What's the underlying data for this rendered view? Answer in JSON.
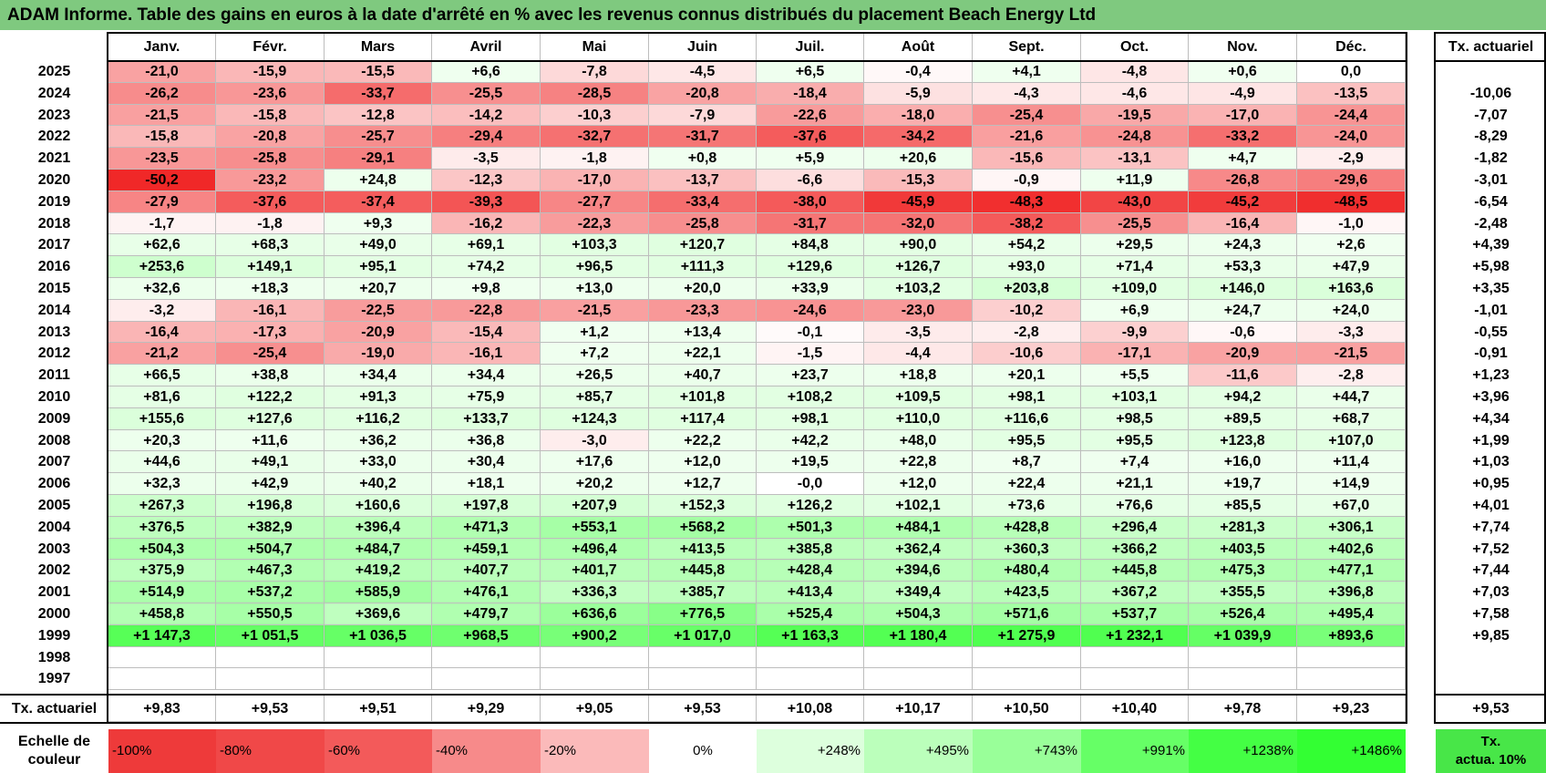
{
  "title": "ADAM Informe. Table des gains en euros à la date d'arrêté en % avec les revenus connus distribués du placement Beach Energy Ltd",
  "months": [
    "Janv.",
    "Févr.",
    "Mars",
    "Avril",
    "Mai",
    "Juin",
    "Juil.",
    "Août",
    "Sept.",
    "Oct.",
    "Nov.",
    "Déc."
  ],
  "tx_header": "Tx. actuariel",
  "rows": [
    {
      "year": "2025",
      "values": [
        "-21,0",
        "-15,9",
        "-15,5",
        "+6,6",
        "-7,8",
        "-4,5",
        "+6,5",
        "-0,4",
        "+4,1",
        "-4,8",
        "+0,6",
        "0,0"
      ],
      "tx": ""
    },
    {
      "year": "2024",
      "values": [
        "-26,2",
        "-23,6",
        "-33,7",
        "-25,5",
        "-28,5",
        "-20,8",
        "-18,4",
        "-5,9",
        "-4,3",
        "-4,6",
        "-4,9",
        "-13,5"
      ],
      "tx": "-10,06"
    },
    {
      "year": "2023",
      "values": [
        "-21,5",
        "-15,8",
        "-12,8",
        "-14,2",
        "-10,3",
        "-7,9",
        "-22,6",
        "-18,0",
        "-25,4",
        "-19,5",
        "-17,0",
        "-24,4"
      ],
      "tx": "-7,07"
    },
    {
      "year": "2022",
      "values": [
        "-15,8",
        "-20,8",
        "-25,7",
        "-29,4",
        "-32,7",
        "-31,7",
        "-37,6",
        "-34,2",
        "-21,6",
        "-24,8",
        "-33,2",
        "-24,0"
      ],
      "tx": "-8,29"
    },
    {
      "year": "2021",
      "values": [
        "-23,5",
        "-25,8",
        "-29,1",
        "-3,5",
        "-1,8",
        "+0,8",
        "+5,9",
        "+20,6",
        "-15,6",
        "-13,1",
        "+4,7",
        "-2,9"
      ],
      "tx": "-1,82"
    },
    {
      "year": "2020",
      "values": [
        "-50,2",
        "-23,2",
        "+24,8",
        "-12,3",
        "-17,0",
        "-13,7",
        "-6,6",
        "-15,3",
        "-0,9",
        "+11,9",
        "-26,8",
        "-29,6"
      ],
      "tx": "-3,01"
    },
    {
      "year": "2019",
      "values": [
        "-27,9",
        "-37,6",
        "-37,4",
        "-39,3",
        "-27,7",
        "-33,4",
        "-38,0",
        "-45,9",
        "-48,3",
        "-43,0",
        "-45,2",
        "-48,5"
      ],
      "tx": "-6,54"
    },
    {
      "year": "2018",
      "values": [
        "-1,7",
        "-1,8",
        "+9,3",
        "-16,2",
        "-22,3",
        "-25,8",
        "-31,7",
        "-32,0",
        "-38,2",
        "-25,5",
        "-16,4",
        "-1,0"
      ],
      "tx": "-2,48"
    },
    {
      "year": "2017",
      "values": [
        "+62,6",
        "+68,3",
        "+49,0",
        "+69,1",
        "+103,3",
        "+120,7",
        "+84,8",
        "+90,0",
        "+54,2",
        "+29,5",
        "+24,3",
        "+2,6"
      ],
      "tx": "+4,39"
    },
    {
      "year": "2016",
      "values": [
        "+253,6",
        "+149,1",
        "+95,1",
        "+74,2",
        "+96,5",
        "+111,3",
        "+129,6",
        "+126,7",
        "+93,0",
        "+71,4",
        "+53,3",
        "+47,9"
      ],
      "tx": "+5,98"
    },
    {
      "year": "2015",
      "values": [
        "+32,6",
        "+18,3",
        "+20,7",
        "+9,8",
        "+13,0",
        "+20,0",
        "+33,9",
        "+103,2",
        "+203,8",
        "+109,0",
        "+146,0",
        "+163,6"
      ],
      "tx": "+3,35"
    },
    {
      "year": "2014",
      "values": [
        "-3,2",
        "-16,1",
        "-22,5",
        "-22,8",
        "-21,5",
        "-23,3",
        "-24,6",
        "-23,0",
        "-10,2",
        "+6,9",
        "+24,7",
        "+24,0"
      ],
      "tx": "-1,01"
    },
    {
      "year": "2013",
      "values": [
        "-16,4",
        "-17,3",
        "-20,9",
        "-15,4",
        "+1,2",
        "+13,4",
        "-0,1",
        "-3,5",
        "-2,8",
        "-9,9",
        "-0,6",
        "-3,3"
      ],
      "tx": "-0,55"
    },
    {
      "year": "2012",
      "values": [
        "-21,2",
        "-25,4",
        "-19,0",
        "-16,1",
        "+7,2",
        "+22,1",
        "-1,5",
        "-4,4",
        "-10,6",
        "-17,1",
        "-20,9",
        "-21,5"
      ],
      "tx": "-0,91"
    },
    {
      "year": "2011",
      "values": [
        "+66,5",
        "+38,8",
        "+34,4",
        "+34,4",
        "+26,5",
        "+40,7",
        "+23,7",
        "+18,8",
        "+20,1",
        "+5,5",
        "-11,6",
        "-2,8"
      ],
      "tx": "+1,23"
    },
    {
      "year": "2010",
      "values": [
        "+81,6",
        "+122,2",
        "+91,3",
        "+75,9",
        "+85,7",
        "+101,8",
        "+108,2",
        "+109,5",
        "+98,1",
        "+103,1",
        "+94,2",
        "+44,7"
      ],
      "tx": "+3,96"
    },
    {
      "year": "2009",
      "values": [
        "+155,6",
        "+127,6",
        "+116,2",
        "+133,7",
        "+124,3",
        "+117,4",
        "+98,1",
        "+110,0",
        "+116,6",
        "+98,5",
        "+89,5",
        "+68,7"
      ],
      "tx": "+4,34"
    },
    {
      "year": "2008",
      "values": [
        "+20,3",
        "+11,6",
        "+36,2",
        "+36,8",
        "-3,0",
        "+22,2",
        "+42,2",
        "+48,0",
        "+95,5",
        "+95,5",
        "+123,8",
        "+107,0"
      ],
      "tx": "+1,99"
    },
    {
      "year": "2007",
      "values": [
        "+44,6",
        "+49,1",
        "+33,0",
        "+30,4",
        "+17,6",
        "+12,0",
        "+19,5",
        "+22,8",
        "+8,7",
        "+7,4",
        "+16,0",
        "+11,4"
      ],
      "tx": "+1,03"
    },
    {
      "year": "2006",
      "values": [
        "+32,3",
        "+42,9",
        "+40,2",
        "+18,1",
        "+20,2",
        "+12,7",
        "-0,0",
        "+12,0",
        "+22,4",
        "+21,1",
        "+19,7",
        "+14,9"
      ],
      "tx": "+0,95"
    },
    {
      "year": "2005",
      "values": [
        "+267,3",
        "+196,8",
        "+160,6",
        "+197,8",
        "+207,9",
        "+152,3",
        "+126,2",
        "+102,1",
        "+73,6",
        "+76,6",
        "+85,5",
        "+67,0"
      ],
      "tx": "+4,01"
    },
    {
      "year": "2004",
      "values": [
        "+376,5",
        "+382,9",
        "+396,4",
        "+471,3",
        "+553,1",
        "+568,2",
        "+501,3",
        "+484,1",
        "+428,8",
        "+296,4",
        "+281,3",
        "+306,1"
      ],
      "tx": "+7,74"
    },
    {
      "year": "2003",
      "values": [
        "+504,3",
        "+504,7",
        "+484,7",
        "+459,1",
        "+496,4",
        "+413,5",
        "+385,8",
        "+362,4",
        "+360,3",
        "+366,2",
        "+403,5",
        "+402,6"
      ],
      "tx": "+7,52"
    },
    {
      "year": "2002",
      "values": [
        "+375,9",
        "+467,3",
        "+419,2",
        "+407,7",
        "+401,7",
        "+445,8",
        "+428,4",
        "+394,6",
        "+480,4",
        "+445,8",
        "+475,3",
        "+477,1"
      ],
      "tx": "+7,44"
    },
    {
      "year": "2001",
      "values": [
        "+514,9",
        "+537,2",
        "+585,9",
        "+476,1",
        "+336,3",
        "+385,7",
        "+413,4",
        "+349,4",
        "+423,5",
        "+367,2",
        "+355,5",
        "+396,8"
      ],
      "tx": "+7,03"
    },
    {
      "year": "2000",
      "values": [
        "+458,8",
        "+550,5",
        "+369,6",
        "+479,7",
        "+636,6",
        "+776,5",
        "+525,4",
        "+504,3",
        "+571,6",
        "+537,7",
        "+526,4",
        "+495,4"
      ],
      "tx": "+7,58"
    },
    {
      "year": "1999",
      "values": [
        "+1 147,3",
        "+1 051,5",
        "+1 036,5",
        "+968,5",
        "+900,2",
        "+1 017,0",
        "+1 163,3",
        "+1 180,4",
        "+1 275,9",
        "+1 232,1",
        "+1 039,9",
        "+893,6"
      ],
      "tx": "+9,85"
    },
    {
      "year": "1998",
      "values": [
        "",
        "",
        "",
        "",
        "",
        "",
        "",
        "",
        "",
        "",
        "",
        ""
      ],
      "tx": ""
    },
    {
      "year": "1997",
      "values": [
        "",
        "",
        "",
        "",
        "",
        "",
        "",
        "",
        "",
        "",
        "",
        ""
      ],
      "tx": ""
    }
  ],
  "footer": {
    "label": "Tx. actuariel",
    "values": [
      "+9,83",
      "+9,53",
      "+9,51",
      "+9,29",
      "+9,05",
      "+9,53",
      "+10,08",
      "+10,17",
      "+10,50",
      "+10,40",
      "+9,78",
      "+9,23"
    ],
    "tx": "+9,53"
  },
  "scale": {
    "title_line1": "Echelle de",
    "title_line2": "couleur",
    "labels": [
      "-100%",
      "-80%",
      "-60%",
      "-40%",
      "-20%",
      "0%",
      "+248%",
      "+495%",
      "+743%",
      "+991%",
      "+1238%",
      "+1486%"
    ],
    "colors": [
      "#ee3a3a",
      "#f04848",
      "#f35a5a",
      "#f78a8a",
      "#fbbaba",
      "#ffffff",
      "#ddffdd",
      "#bbffbb",
      "#99ff99",
      "#66ff66",
      "#44ff44",
      "#33ff33"
    ],
    "tx_line1": "Tx.",
    "tx_line2": "actua. 10%"
  },
  "colors": {
    "title_bg": "#7fc97f",
    "negative_max": "#f02828",
    "positive_max": "#33ff33"
  }
}
